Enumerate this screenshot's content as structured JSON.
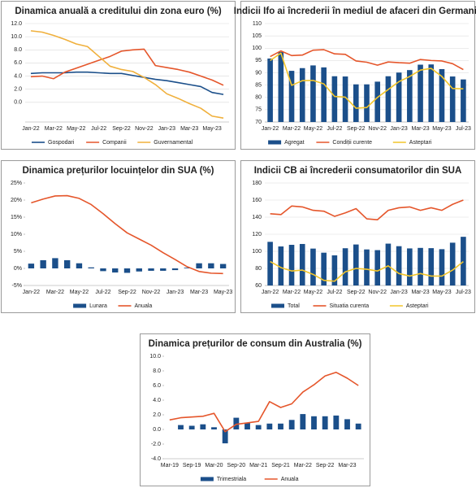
{
  "chart_data": [
    {
      "type": "combo",
      "title": "Dinamica anuală a creditului din zona euro (%)",
      "categories": [
        "Jan-22",
        null,
        "Mar-22",
        null,
        "May-22",
        null,
        "Jul-22",
        null,
        "Sep-22",
        null,
        "Nov-22",
        null,
        "Jan-23",
        null,
        "Mar-23",
        null,
        "May-23",
        null
      ],
      "ylim": [
        -3,
        12
      ],
      "yticks": [
        {
          "value": 0,
          "label": "0.0"
        },
        {
          "value": 2,
          "label": "2.0"
        },
        {
          "value": 4,
          "label": "4.0"
        },
        {
          "value": 6,
          "label": "6.0"
        },
        {
          "value": 8,
          "label": "8.0"
        },
        {
          "value": 10,
          "label": "10.0"
        },
        {
          "value": 12,
          "label": "12.0"
        }
      ],
      "grid": true,
      "series": [
        {
          "name": "Gospodari",
          "kind": "line",
          "color": "#1b4f8a",
          "values": [
            4.4,
            4.5,
            4.5,
            4.5,
            4.6,
            4.6,
            4.5,
            4.4,
            4.4,
            4.1,
            3.8,
            3.5,
            3.3,
            3.0,
            2.7,
            2.4,
            1.5,
            1.2
          ]
        },
        {
          "name": "Companii",
          "kind": "line",
          "color": "#e5562b",
          "values": [
            3.9,
            4.0,
            3.6,
            4.6,
            5.2,
            5.8,
            6.4,
            7.0,
            7.8,
            8.0,
            8.1,
            5.6,
            5.3,
            5.0,
            4.6,
            4.0,
            3.4,
            2.6
          ]
        },
        {
          "name": "Guvernamental",
          "kind": "line",
          "color": "#f0b03c",
          "values": [
            10.9,
            10.7,
            10.2,
            9.6,
            8.9,
            8.5,
            7.0,
            5.5,
            5.0,
            4.7,
            3.8,
            2.7,
            1.3,
            0.6,
            -0.2,
            -0.9,
            -2.1,
            -2.4
          ]
        }
      ]
    },
    {
      "type": "combo",
      "title": "Indicii Ifo ai încrederii în mediul de afaceri din Germania",
      "categories": [
        "Jan-22",
        null,
        "Mar-22",
        null,
        "May-22",
        null,
        "Jul-22",
        null,
        "Sep-22",
        null,
        "Nov-22",
        null,
        "Jan-23",
        null,
        "Mar-23",
        null,
        "May-23",
        null,
        "Jul-23"
      ],
      "ylim": [
        70,
        110
      ],
      "yticks": [
        70,
        75,
        80,
        85,
        90,
        95,
        100,
        105,
        110
      ],
      "grid": true,
      "series": [
        {
          "name": "Agregat",
          "kind": "bar",
          "color": "#1b4f8a",
          "values": [
            95.8,
            98.5,
            90.8,
            91.9,
            93.0,
            92.2,
            88.6,
            88.5,
            85.3,
            85.3,
            86.4,
            88.6,
            90.1,
            91.1,
            93.3,
            93.4,
            91.5,
            88.5,
            87.3
          ]
        },
        {
          "name": "Condiții curente",
          "kind": "line",
          "color": "#e5562b",
          "values": [
            96.6,
            98.9,
            97.0,
            97.2,
            99.2,
            99.4,
            97.7,
            97.5,
            94.8,
            94.3,
            93.1,
            94.4,
            94.1,
            93.9,
            95.4,
            95.0,
            94.8,
            93.7,
            91.3
          ]
        },
        {
          "name": "Asteptari",
          "kind": "line",
          "color": "#f2c52a",
          "values": [
            95.0,
            98.0,
            84.9,
            86.8,
            86.9,
            85.5,
            80.4,
            80.1,
            75.6,
            75.9,
            80.0,
            83.2,
            86.4,
            88.5,
            91.1,
            91.8,
            88.5,
            83.6,
            83.5
          ]
        }
      ]
    },
    {
      "type": "combo",
      "title": "Dinamica prețurilor locuințelor din SUA (%)",
      "categories": [
        "Jan-22",
        null,
        "Mar-22",
        null,
        "May-22",
        null,
        "Jul-22",
        null,
        "Sep-22",
        null,
        "Nov-22",
        null,
        "Jan-23",
        null,
        "Mar-23",
        null,
        "May-23"
      ],
      "ylim": [
        -5,
        25
      ],
      "yticks": [
        {
          "value": -5,
          "label": "-5%"
        },
        {
          "value": 0,
          "label": "0%"
        },
        {
          "value": 5,
          "label": "5%"
        },
        {
          "value": 10,
          "label": "10%"
        },
        {
          "value": 15,
          "label": "15%"
        },
        {
          "value": 20,
          "label": "20%"
        },
        {
          "value": 25,
          "label": "25%"
        }
      ],
      "grid": false,
      "series": [
        {
          "name": "Lunara",
          "kind": "bar",
          "color": "#1b4f8a",
          "values": [
            1.4,
            2.4,
            3.0,
            2.4,
            1.5,
            0.3,
            -0.8,
            -1.2,
            -1.3,
            -0.9,
            -0.7,
            -0.7,
            -0.5,
            0.2,
            1.5,
            1.5,
            1.3
          ]
        },
        {
          "name": "Anuala",
          "kind": "line",
          "color": "#e5562b",
          "values": [
            19.2,
            20.3,
            21.2,
            21.3,
            20.5,
            18.7,
            16.0,
            13.1,
            10.4,
            8.6,
            6.8,
            4.6,
            2.6,
            0.5,
            -0.9,
            -1.4,
            -1.5
          ]
        }
      ]
    },
    {
      "type": "combo",
      "title": "Indicii CB ai încrederii consumatorilor din SUA",
      "categories": [
        "Jan-22",
        null,
        "Mar-22",
        null,
        "May-22",
        null,
        "Jul-22",
        null,
        "Sep-22",
        null,
        "Nov-22",
        null,
        "Jan-23",
        null,
        "Mar-23",
        null,
        "May-23",
        null,
        "Jul-23"
      ],
      "ylim": [
        60,
        180
      ],
      "yticks": [
        60,
        80,
        100,
        120,
        140,
        160,
        180
      ],
      "grid": true,
      "series": [
        {
          "name": "Total",
          "kind": "bar",
          "color": "#1b4f8a",
          "values": [
            111.1,
            105.7,
            107.6,
            108.6,
            103.2,
            98.4,
            95.3,
            103.6,
            108.0,
            102.2,
            101.4,
            109.0,
            106.0,
            103.4,
            104.0,
            103.7,
            102.5,
            110.1,
            117.0
          ]
        },
        {
          "name": "Situatia curenta",
          "kind": "line",
          "color": "#e5562b",
          "values": [
            144,
            143,
            153,
            152,
            148,
            147,
            141,
            145,
            150,
            138,
            137,
            148,
            151,
            152,
            148,
            151,
            148,
            155,
            160
          ]
        },
        {
          "name": "Asteptari",
          "kind": "line",
          "color": "#f2c52a",
          "values": [
            88,
            81,
            77,
            78,
            73,
            66,
            65,
            76,
            80,
            79,
            77,
            83,
            74,
            71,
            74,
            71,
            71,
            78,
            88
          ]
        }
      ]
    },
    {
      "type": "combo",
      "title": "Dinamica prețurilor de consum din Australia (%)",
      "categories": [
        "Mar-19",
        null,
        "Sep-19",
        null,
        "Mar-20",
        null,
        "Sep-20",
        null,
        "Mar-21",
        null,
        "Sep-21",
        null,
        "Mar-22",
        null,
        "Sep-22",
        null,
        "Mar-23",
        null
      ],
      "ylim": [
        -4,
        10
      ],
      "yticks": [
        {
          "value": -4,
          "label": "-4.0"
        },
        {
          "value": -2,
          "label": "-2.0"
        },
        {
          "value": 0,
          "label": "0.0"
        },
        {
          "value": 2,
          "label": "2.0"
        },
        {
          "value": 4,
          "label": "4.0"
        },
        {
          "value": 6,
          "label": "6.0"
        },
        {
          "value": 8,
          "label": "8.0"
        },
        {
          "value": 10,
          "label": "10.0"
        }
      ],
      "grid": false,
      "series": [
        {
          "name": "Trimestriala",
          "kind": "bar",
          "color": "#1b4f8a",
          "values": [
            0.0,
            0.6,
            0.5,
            0.7,
            0.3,
            -1.9,
            1.6,
            0.9,
            0.6,
            0.8,
            0.8,
            1.3,
            2.1,
            1.8,
            1.8,
            1.9,
            1.4,
            0.8
          ]
        },
        {
          "name": "Anuala",
          "kind": "line",
          "color": "#e5562b",
          "values": [
            1.3,
            1.6,
            1.7,
            1.8,
            2.2,
            -0.3,
            0.7,
            0.9,
            1.1,
            3.8,
            3.0,
            3.5,
            5.1,
            6.1,
            7.3,
            7.8,
            7.0,
            6.0
          ]
        }
      ]
    }
  ]
}
